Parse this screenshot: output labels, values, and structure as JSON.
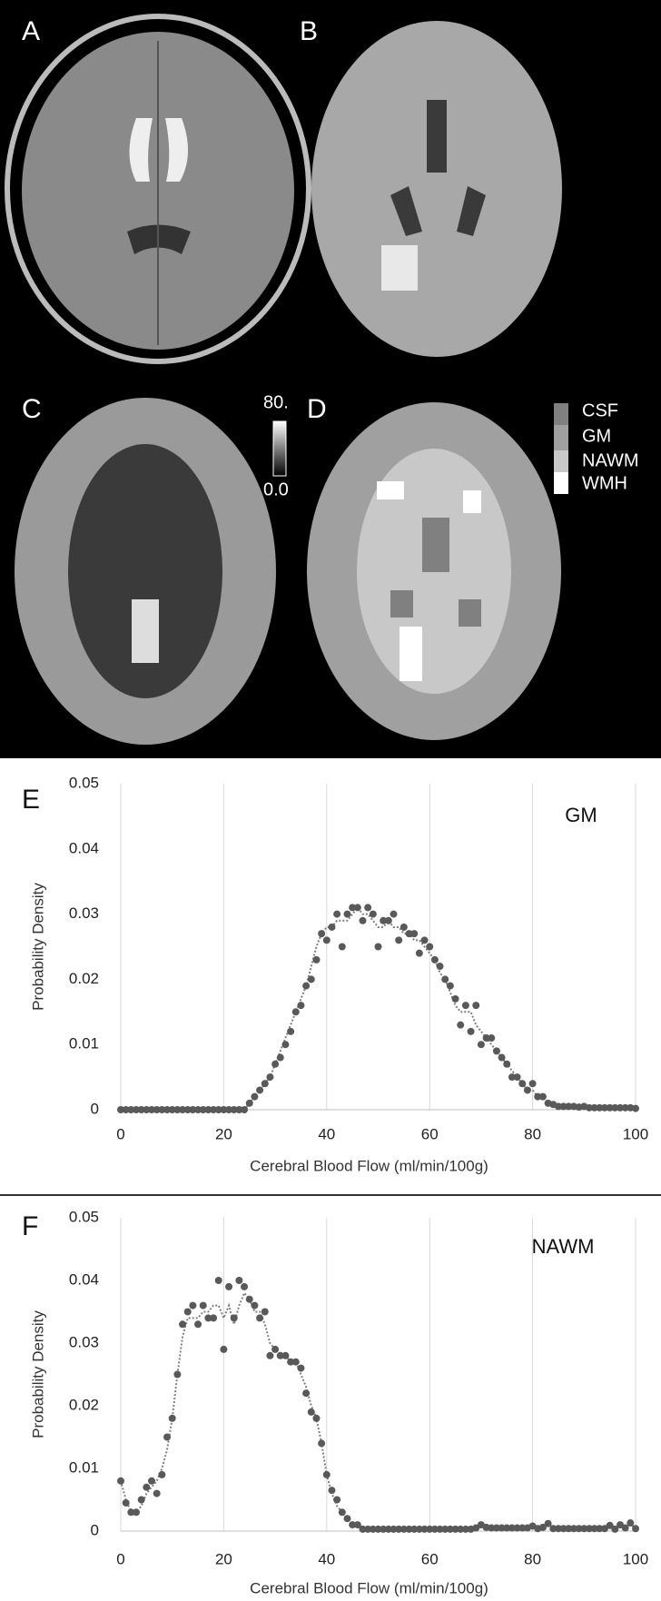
{
  "figure": {
    "panel_labels": [
      "A",
      "B",
      "C",
      "D"
    ],
    "colorbar_labels": [
      "80.",
      "0.0"
    ],
    "segmentation_legend": [
      "CSF",
      "GM",
      "NAWM",
      "WMH"
    ]
  },
  "chart_data": [
    {
      "type": "scatter",
      "panel_label": "E",
      "annotation": "GM",
      "x_label": "Cerebral Blood Flow (ml/min/100g)",
      "y_label": "Probability Density",
      "xlim": [
        0,
        100
      ],
      "ylim": [
        0,
        0.05
      ],
      "xticks": [
        0,
        20,
        40,
        60,
        80,
        100
      ],
      "yticks": [
        0,
        0.01,
        0.02,
        0.03,
        0.04,
        0.05
      ],
      "grid": "x",
      "x": [
        0,
        1,
        2,
        3,
        4,
        5,
        6,
        7,
        8,
        9,
        10,
        11,
        12,
        13,
        14,
        15,
        16,
        17,
        18,
        19,
        20,
        21,
        22,
        23,
        24,
        25,
        26,
        27,
        28,
        29,
        30,
        31,
        32,
        33,
        34,
        35,
        36,
        37,
        38,
        39,
        40,
        41,
        42,
        43,
        44,
        45,
        46,
        47,
        48,
        49,
        50,
        51,
        52,
        53,
        54,
        55,
        56,
        57,
        58,
        59,
        60,
        61,
        62,
        63,
        64,
        65,
        66,
        67,
        68,
        69,
        70,
        71,
        72,
        73,
        74,
        75,
        76,
        77,
        78,
        79,
        80,
        81,
        82,
        83,
        84,
        85,
        86,
        87,
        88,
        89,
        90,
        91,
        92,
        93,
        94,
        95,
        96,
        97,
        98,
        99,
        100
      ],
      "series": [
        {
          "style": "markers",
          "color": "#595959",
          "values": [
            0,
            0,
            0,
            0,
            0,
            0,
            0,
            0,
            0,
            0,
            0,
            0,
            0,
            0,
            0,
            0,
            0,
            0,
            0,
            0,
            0,
            0,
            0,
            0,
            0,
            0.001,
            0.002,
            0.003,
            0.004,
            0.005,
            0.007,
            0.008,
            0.01,
            0.012,
            0.015,
            0.016,
            0.019,
            0.02,
            0.023,
            0.027,
            0.026,
            0.028,
            0.03,
            0.025,
            0.03,
            0.031,
            0.031,
            0.029,
            0.031,
            0.03,
            0.025,
            0.029,
            0.029,
            0.03,
            0.026,
            0.028,
            0.027,
            0.027,
            0.024,
            0.026,
            0.025,
            0.023,
            0.022,
            0.02,
            0.019,
            0.017,
            0.013,
            0.016,
            0.012,
            0.016,
            0.01,
            0.011,
            0.011,
            0.009,
            0.008,
            0.007,
            0.005,
            0.005,
            0.004,
            0.003,
            0.004,
            0.002,
            0.002,
            0.001,
            0.0008,
            0.0005,
            0.0005,
            0.0005,
            0.0005,
            0.0004,
            0.0005,
            0.0003,
            0.0003,
            0.0003,
            0.0003,
            0.0003,
            0.0003,
            0.0003,
            0.0003,
            0.0003,
            0.0002
          ]
        },
        {
          "style": "dotted",
          "color": "#7f7f7f",
          "values": [
            0,
            0,
            0,
            0,
            0,
            0,
            0,
            0,
            0,
            0,
            0,
            0,
            0,
            0,
            0,
            0,
            0,
            0,
            0,
            0,
            0,
            0,
            0,
            0,
            0,
            0.001,
            0.002,
            0.003,
            0.004,
            0.005,
            0.007,
            0.009,
            0.011,
            0.013,
            0.015,
            0.017,
            0.019,
            0.022,
            0.025,
            0.027,
            0.028,
            0.028,
            0.029,
            0.029,
            0.029,
            0.03,
            0.031,
            0.03,
            0.03,
            0.029,
            0.028,
            0.028,
            0.029,
            0.028,
            0.028,
            0.027,
            0.027,
            0.026,
            0.026,
            0.025,
            0.024,
            0.023,
            0.021,
            0.02,
            0.018,
            0.016,
            0.015,
            0.015,
            0.015,
            0.013,
            0.012,
            0.011,
            0.01,
            0.009,
            0.008,
            0.007,
            0.006,
            0.005,
            0.004,
            0.003,
            0.003,
            0.002,
            0.002,
            0.001,
            0.0008,
            0.0006,
            0.0005,
            0.0005,
            0.0005,
            0.0005,
            0.0004,
            0.0004,
            0.0003,
            0.0003,
            0.0003,
            0.0003,
            0.0003,
            0.0003,
            0.0003,
            0.0003,
            0.0002
          ]
        }
      ]
    },
    {
      "type": "scatter",
      "panel_label": "F",
      "annotation": "NAWM",
      "x_label": "Cerebral Blood Flow (ml/min/100g)",
      "y_label": "Probability Density",
      "xlim": [
        0,
        100
      ],
      "ylim": [
        0,
        0.05
      ],
      "xticks": [
        0,
        20,
        40,
        60,
        80,
        100
      ],
      "yticks": [
        0,
        0.01,
        0.02,
        0.03,
        0.04,
        0.05
      ],
      "grid": "x",
      "x": [
        0,
        1,
        2,
        3,
        4,
        5,
        6,
        7,
        8,
        9,
        10,
        11,
        12,
        13,
        14,
        15,
        16,
        17,
        18,
        19,
        20,
        21,
        22,
        23,
        24,
        25,
        26,
        27,
        28,
        29,
        30,
        31,
        32,
        33,
        34,
        35,
        36,
        37,
        38,
        39,
        40,
        41,
        42,
        43,
        44,
        45,
        46,
        47,
        48,
        49,
        50,
        51,
        52,
        53,
        54,
        55,
        56,
        57,
        58,
        59,
        60,
        61,
        62,
        63,
        64,
        65,
        66,
        67,
        68,
        69,
        70,
        71,
        72,
        73,
        74,
        75,
        76,
        77,
        78,
        79,
        80,
        81,
        82,
        83,
        84,
        85,
        86,
        87,
        88,
        89,
        90,
        91,
        92,
        93,
        94,
        95,
        96,
        97,
        98,
        99,
        100
      ],
      "series": [
        {
          "style": "markers",
          "color": "#595959",
          "values": [
            0.008,
            0.0045,
            0.003,
            0.003,
            0.005,
            0.007,
            0.008,
            0.006,
            0.009,
            0.015,
            0.018,
            0.025,
            0.033,
            0.035,
            0.036,
            0.033,
            0.036,
            0.034,
            0.034,
            0.04,
            0.029,
            0.039,
            0.034,
            0.04,
            0.039,
            0.037,
            0.036,
            0.034,
            0.035,
            0.028,
            0.029,
            0.028,
            0.028,
            0.027,
            0.027,
            0.026,
            0.022,
            0.019,
            0.018,
            0.014,
            0.009,
            0.0065,
            0.005,
            0.003,
            0.002,
            0.001,
            0.001,
            0.0003,
            0.0003,
            0.0003,
            0.0003,
            0.0003,
            0.0003,
            0.0003,
            0.0003,
            0.0003,
            0.0003,
            0.0003,
            0.0003,
            0.0003,
            0.0003,
            0.0003,
            0.0003,
            0.0003,
            0.0003,
            0.0003,
            0.0003,
            0.0003,
            0.0003,
            0.0005,
            0.001,
            0.0006,
            0.0005,
            0.0005,
            0.0005,
            0.0005,
            0.0005,
            0.0005,
            0.0005,
            0.0005,
            0.0008,
            0.0004,
            0.0006,
            0.0012,
            0.0004,
            0.0004,
            0.0004,
            0.0004,
            0.0004,
            0.0004,
            0.0004,
            0.0004,
            0.0004,
            0.0004,
            0.0004,
            0.0009,
            0.0003,
            0.001,
            0.0005,
            0.0013,
            0.0004
          ]
        },
        {
          "style": "dotted",
          "color": "#7f7f7f",
          "values": [
            0.008,
            0.005,
            0.003,
            0.003,
            0.004,
            0.006,
            0.007,
            0.008,
            0.01,
            0.013,
            0.018,
            0.025,
            0.031,
            0.034,
            0.034,
            0.034,
            0.035,
            0.035,
            0.036,
            0.036,
            0.034,
            0.036,
            0.033,
            0.036,
            0.038,
            0.037,
            0.035,
            0.035,
            0.033,
            0.03,
            0.029,
            0.028,
            0.028,
            0.027,
            0.027,
            0.025,
            0.023,
            0.02,
            0.018,
            0.014,
            0.009,
            0.006,
            0.004,
            0.003,
            0.002,
            0.001,
            0.0006,
            0.0004,
            0.0003,
            0.0003,
            0.0003,
            0.0003,
            0.0003,
            0.0003,
            0.0003,
            0.0003,
            0.0003,
            0.0003,
            0.0003,
            0.0003,
            0.0003,
            0.0003,
            0.0003,
            0.0003,
            0.0003,
            0.0003,
            0.0003,
            0.0003,
            0.0004,
            0.0005,
            0.0007,
            0.0006,
            0.0005,
            0.0005,
            0.0005,
            0.0005,
            0.0005,
            0.0005,
            0.0005,
            0.0005,
            0.0006,
            0.0005,
            0.0006,
            0.0009,
            0.0005,
            0.0005,
            0.0005,
            0.0005,
            0.0005,
            0.0005,
            0.0004,
            0.0004,
            0.0004,
            0.0004,
            0.0004,
            0.0007,
            0.0005,
            0.0008,
            0.0006,
            0.001,
            0.0006
          ]
        }
      ]
    }
  ]
}
